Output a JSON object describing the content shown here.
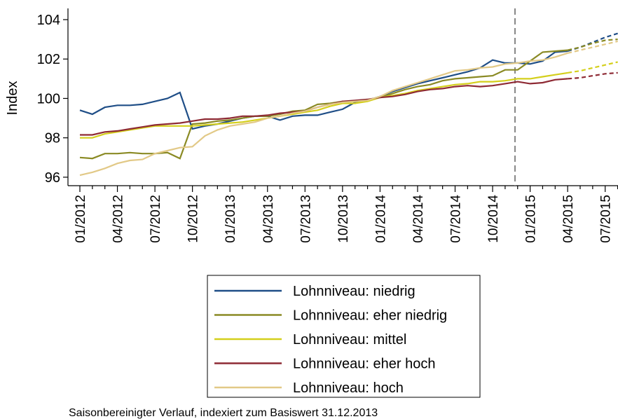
{
  "chart_data": {
    "type": "line",
    "y_label": "Index",
    "note": "Saisonbereinigter Verlauf, indexiert zum Basiswert 31.12.2013",
    "categories": [
      "01/2012",
      null,
      null,
      "04/2012",
      null,
      null,
      "07/2012",
      null,
      null,
      "10/2012",
      null,
      null,
      "01/2013",
      null,
      null,
      "04/2013",
      null,
      null,
      "07/2013",
      null,
      null,
      "10/2013",
      null,
      null,
      "01/2014",
      null,
      null,
      "04/2014",
      null,
      null,
      "07/2014",
      null,
      null,
      "10/2014",
      null,
      null,
      "01/2015",
      null,
      null,
      "04/2015",
      null,
      null,
      "07/2015",
      null
    ],
    "dash_from": "04/2015",
    "ylim": [
      95.57,
      104.57
    ],
    "yticks": [
      96,
      98,
      100,
      102,
      104
    ],
    "series": [
      {
        "name": "Lohnniveau: niedrig",
        "color": "#1f4e87",
        "values": [
          99.4,
          99.2,
          99.55,
          99.65,
          99.65,
          99.7,
          99.85,
          100.0,
          100.3,
          98.45,
          98.6,
          98.7,
          98.85,
          99.0,
          99.1,
          99.1,
          98.9,
          99.1,
          99.15,
          99.15,
          99.3,
          99.45,
          99.8,
          99.9,
          100.1,
          100.35,
          100.55,
          100.75,
          100.9,
          101.05,
          101.2,
          101.35,
          101.55,
          101.95,
          101.8,
          101.8,
          101.75,
          101.9,
          102.35,
          102.4,
          102.6,
          102.85,
          103.1,
          103.3
        ]
      },
      {
        "name": "Lohnniveau: eher niedrig",
        "color": "#8a8a24",
        "values": [
          97.0,
          96.95,
          97.2,
          97.2,
          97.25,
          97.2,
          97.2,
          97.25,
          96.95,
          98.7,
          98.75,
          98.85,
          98.9,
          99.0,
          99.1,
          99.1,
          99.2,
          99.35,
          99.4,
          99.7,
          99.75,
          99.85,
          99.85,
          99.9,
          100.05,
          100.25,
          100.45,
          100.6,
          100.7,
          100.9,
          101.0,
          101.05,
          101.1,
          101.15,
          101.45,
          101.45,
          101.9,
          102.35,
          102.4,
          102.45,
          102.6,
          102.8,
          102.95,
          103.0
        ]
      },
      {
        "name": "Lohnniveau: mittel",
        "color": "#d4cf1c",
        "values": [
          98.0,
          98.0,
          98.2,
          98.3,
          98.4,
          98.5,
          98.6,
          98.6,
          98.6,
          98.6,
          98.65,
          98.7,
          98.75,
          98.8,
          98.9,
          99.0,
          99.1,
          99.2,
          99.3,
          99.4,
          99.6,
          99.75,
          99.75,
          99.85,
          100.05,
          100.15,
          100.25,
          100.4,
          100.5,
          100.6,
          100.7,
          100.75,
          100.85,
          100.85,
          100.9,
          101.0,
          101.0,
          101.1,
          101.2,
          101.3,
          101.4,
          101.55,
          101.7,
          101.85
        ]
      },
      {
        "name": "Lohnniveau: eher hoch",
        "color": "#8e2a34",
        "values": [
          98.15,
          98.15,
          98.3,
          98.35,
          98.45,
          98.55,
          98.65,
          98.7,
          98.75,
          98.85,
          98.95,
          98.95,
          99.0,
          99.1,
          99.1,
          99.15,
          99.25,
          99.3,
          99.35,
          99.55,
          99.7,
          99.85,
          99.9,
          99.95,
          100.05,
          100.1,
          100.2,
          100.35,
          100.45,
          100.5,
          100.6,
          100.65,
          100.6,
          100.65,
          100.75,
          100.85,
          100.75,
          100.8,
          100.95,
          101.0,
          101.05,
          101.15,
          101.25,
          101.3
        ]
      },
      {
        "name": "Lohnniveau: hoch",
        "color": "#e2c987",
        "values": [
          96.1,
          96.25,
          96.45,
          96.7,
          96.85,
          96.9,
          97.2,
          97.35,
          97.5,
          97.55,
          98.1,
          98.4,
          98.6,
          98.7,
          98.8,
          99.0,
          99.1,
          99.25,
          99.35,
          99.55,
          99.7,
          99.8,
          99.85,
          99.9,
          100.1,
          100.4,
          100.6,
          100.8,
          101.0,
          101.2,
          101.4,
          101.45,
          101.55,
          101.6,
          101.75,
          101.8,
          101.9,
          101.95,
          102.1,
          102.3,
          102.45,
          102.6,
          102.75,
          102.9
        ]
      }
    ]
  }
}
